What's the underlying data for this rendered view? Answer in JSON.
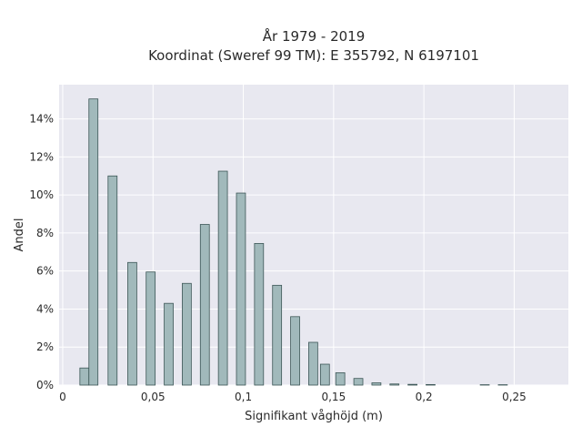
{
  "chart_data": {
    "type": "bar",
    "title_lines": [
      "År 1979 - 2019",
      "Koordinat (Sweref 99 TM): E 355792, N 6197101"
    ],
    "xlabel": "Signifikant våghöjd (m)",
    "ylabel": "Andel",
    "xlim": [
      -0.002,
      0.28
    ],
    "ylim": [
      0,
      15.8
    ],
    "xticks": [
      {
        "value": 0,
        "label": "0"
      },
      {
        "value": 0.05,
        "label": "0,05"
      },
      {
        "value": 0.1,
        "label": "0,1"
      },
      {
        "value": 0.15,
        "label": "0,15"
      },
      {
        "value": 0.2,
        "label": "0,2"
      },
      {
        "value": 0.25,
        "label": "0,25"
      }
    ],
    "yticks": [
      {
        "value": 0,
        "label": "0%"
      },
      {
        "value": 2,
        "label": "2%"
      },
      {
        "value": 4,
        "label": "4%"
      },
      {
        "value": 6,
        "label": "6%"
      },
      {
        "value": 8,
        "label": "8%"
      },
      {
        "value": 10,
        "label": "10%"
      },
      {
        "value": 12,
        "label": "12%"
      },
      {
        "value": 14,
        "label": "14%"
      }
    ],
    "bar_width": 0.005,
    "x": [
      0.012,
      0.017,
      0.0276,
      0.0385,
      0.0487,
      0.0587,
      0.0687,
      0.0787,
      0.0887,
      0.0987,
      0.1087,
      0.1187,
      0.1287,
      0.1387,
      0.1452,
      0.1537,
      0.1637,
      0.1737,
      0.1837,
      0.1937,
      0.2037,
      0.2337,
      0.2437
    ],
    "values": [
      0.9,
      15.05,
      11.0,
      6.45,
      5.95,
      4.3,
      5.35,
      8.45,
      11.25,
      10.1,
      7.45,
      5.25,
      3.6,
      2.25,
      1.1,
      0.65,
      0.35,
      0.12,
      0.06,
      0.04,
      0.03,
      0.02,
      0.02
    ],
    "grid": true,
    "legend": "none",
    "colors": {
      "plot_background": "#e8e8f0",
      "grid": "#ffffff",
      "bar_fill": "#a1b9bb",
      "bar_edge": "#3c5656"
    }
  }
}
